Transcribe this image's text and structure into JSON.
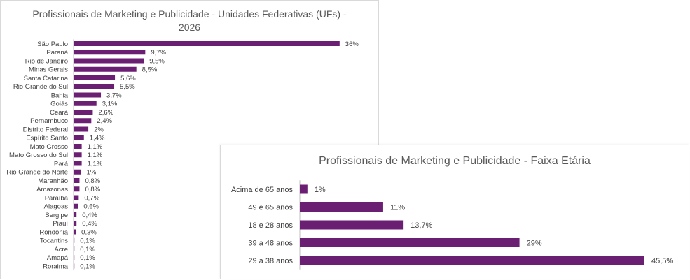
{
  "colors": {
    "bar": "#6b1f73",
    "axis": "#bfbfbf",
    "text": "#404040",
    "title": "#595959"
  },
  "chart_data": [
    {
      "type": "bar",
      "orientation": "horizontal",
      "title": "Profissionais de Marketing e Publicidade - Unidades Federativas (UFs) - 2026",
      "categories": [
        "São Paulo",
        "Paraná",
        "Rio de Janeiro",
        "Minas Gerais",
        "Santa Catarina",
        "Rio Grande do Sul",
        "Bahia",
        "Goiás",
        "Ceará",
        "Pernambuco",
        "Distrito Federal",
        "Espírito Santo",
        "Mato Grosso",
        "Mato Grosso do Sul",
        "Pará",
        "Rio Grande do Norte",
        "Maranhão",
        "Amazonas",
        "Paraíba",
        "Alagoas",
        "Sergipe",
        "Piauí",
        "Rondônia",
        "Tocantins",
        "Acre",
        "Amapá",
        "Roraima"
      ],
      "values": [
        36,
        9.7,
        9.5,
        8.5,
        5.6,
        5.5,
        3.7,
        3.1,
        2.6,
        2.4,
        2,
        1.4,
        1.1,
        1.1,
        1.1,
        1,
        0.8,
        0.8,
        0.7,
        0.6,
        0.4,
        0.4,
        0.3,
        0.1,
        0.1,
        0.1,
        0.1
      ],
      "value_labels": [
        "36%",
        "9,7%",
        "9,5%",
        "8,5%",
        "5,6%",
        "5,5%",
        "3,7%",
        "3,1%",
        "2,6%",
        "2,4%",
        "2%",
        "1,4%",
        "1,1%",
        "1,1%",
        "1,1%",
        "1%",
        "0,8%",
        "0,8%",
        "0,7%",
        "0,6%",
        "0,4%",
        "0,4%",
        "0,3%",
        "0,1%",
        "0,1%",
        "0,1%",
        "0,1%"
      ],
      "xlim": [
        0,
        40
      ],
      "grid": false
    },
    {
      "type": "bar",
      "orientation": "horizontal",
      "title": "Profissionais de Marketing e Publicidade - Faixa Etária",
      "categories": [
        "Acima de 65 anos",
        "49 e 65 anos",
        "18 e 28 anos",
        "39 a 48 anos",
        "29 a 38 anos"
      ],
      "values": [
        1,
        11,
        13.7,
        29,
        45.5
      ],
      "value_labels": [
        "1%",
        "11%",
        "13,7%",
        "29%",
        "45,5%"
      ],
      "xlim": [
        0,
        45.5
      ],
      "grid": false
    }
  ]
}
